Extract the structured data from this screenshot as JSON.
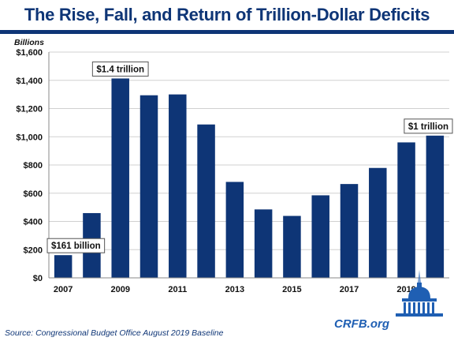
{
  "chart_data": {
    "type": "bar",
    "title": "The Rise, Fall, and Return of Trillion-Dollar Deficits",
    "ylabel": "Billions",
    "xlabel": "",
    "ylim": [
      0,
      1600
    ],
    "yticks": [
      0,
      200,
      400,
      600,
      800,
      1000,
      1200,
      1400,
      1600
    ],
    "ytick_labels": [
      "$0",
      "$200",
      "$400",
      "$600",
      "$800",
      "$1,000",
      "$1,200",
      "$1,400",
      "$1,600"
    ],
    "categories": [
      2007,
      2008,
      2009,
      2010,
      2011,
      2012,
      2013,
      2014,
      2015,
      2016,
      2017,
      2018,
      2019,
      2020
    ],
    "xtick_labels": [
      "2007",
      "",
      "2009",
      "",
      "2011",
      "",
      "2013",
      "",
      "2015",
      "",
      "2017",
      "",
      "2019",
      ""
    ],
    "values": [
      161,
      459,
      1413,
      1294,
      1300,
      1087,
      680,
      485,
      439,
      585,
      665,
      779,
      960,
      1008
    ],
    "bar_color": "#0e3576",
    "grid": true,
    "annotations": [
      {
        "category": 2007,
        "text": "$161 billion"
      },
      {
        "category": 2009,
        "text": "$1.4 trillion"
      },
      {
        "category": 2020,
        "text": "$1 trillion"
      }
    ]
  },
  "source": "Source: Congressional Budget Office August 2019 Baseline",
  "brand": "CRFB.org",
  "icon": "capitol-dome-icon"
}
